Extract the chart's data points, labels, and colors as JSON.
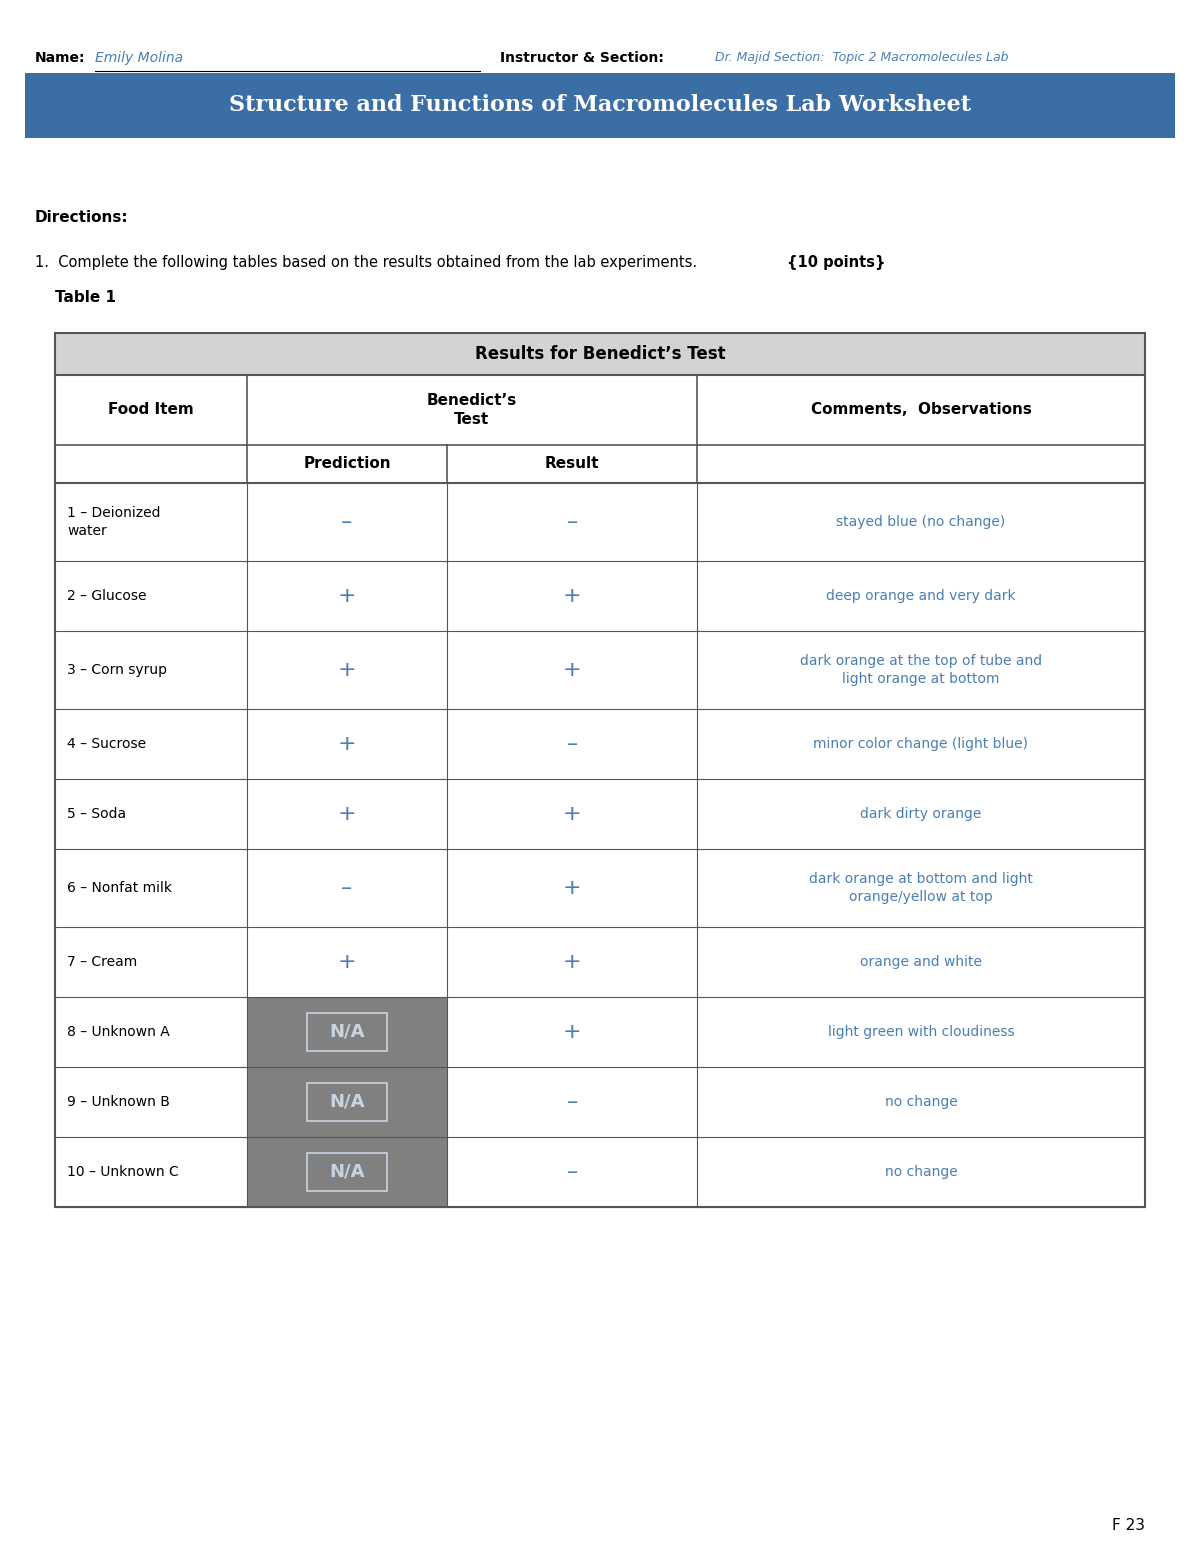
{
  "title": "Structure and Functions of Macromolecules Lab Worksheet",
  "title_bg": "#3b6ea5",
  "title_color": "#ffffff",
  "name_label": "Name:",
  "name_value": "Emily Molina",
  "instructor_label": "Instructor & Section:",
  "instructor_value": "Dr. Majid Section:  Topic 2 Macromolecules Lab",
  "directions_bold": "Directions:",
  "directions_text": "Complete the following tables based on the results obtained from the lab experiments.",
  "directions_points": "{10 points}",
  "table_label": "Table 1",
  "table_title": "Results for Benedict’s Test",
  "table_header_bg": "#d3d3d3",
  "rows": [
    {
      "food": "1 – Deionized\nwater",
      "pred": "–",
      "result": "–",
      "comment": "stayed blue (no change)",
      "na": false
    },
    {
      "food": "2 – Glucose",
      "pred": "+",
      "result": "+",
      "comment": "deep orange and very dark",
      "na": false
    },
    {
      "food": "3 – Corn syrup",
      "pred": "+",
      "result": "+",
      "comment": "dark orange at the top of tube and\nlight orange at bottom",
      "na": false
    },
    {
      "food": "4 – Sucrose",
      "pred": "+",
      "result": "–",
      "comment": "minor color change (light blue)",
      "na": false
    },
    {
      "food": "5 – Soda",
      "pred": "+",
      "result": "+",
      "comment": "dark dirty orange",
      "na": false
    },
    {
      "food": "6 – Nonfat milk",
      "pred": "–",
      "result": "+",
      "comment": "dark orange at bottom and light\norange/yellow at top",
      "na": false
    },
    {
      "food": "7 – Cream",
      "pred": "+",
      "result": "+",
      "comment": "orange and white",
      "na": false
    },
    {
      "food": "8 – Unknown A",
      "pred": "N/A",
      "result": "+",
      "comment": "light green with cloudiness",
      "na": true
    },
    {
      "food": "9 – Unknown B",
      "pred": "N/A",
      "result": "–",
      "comment": "no change",
      "na": true
    },
    {
      "food": "10 – Unknown C",
      "pred": "N/A",
      "result": "–",
      "comment": "no change",
      "na": true
    }
  ],
  "blue_color": "#4a7eb5",
  "gray_na_bg": "#808080",
  "gray_na_text": "#c8d4e0",
  "border_color": "#555555",
  "page_number": "F 23",
  "background": "#ffffff"
}
